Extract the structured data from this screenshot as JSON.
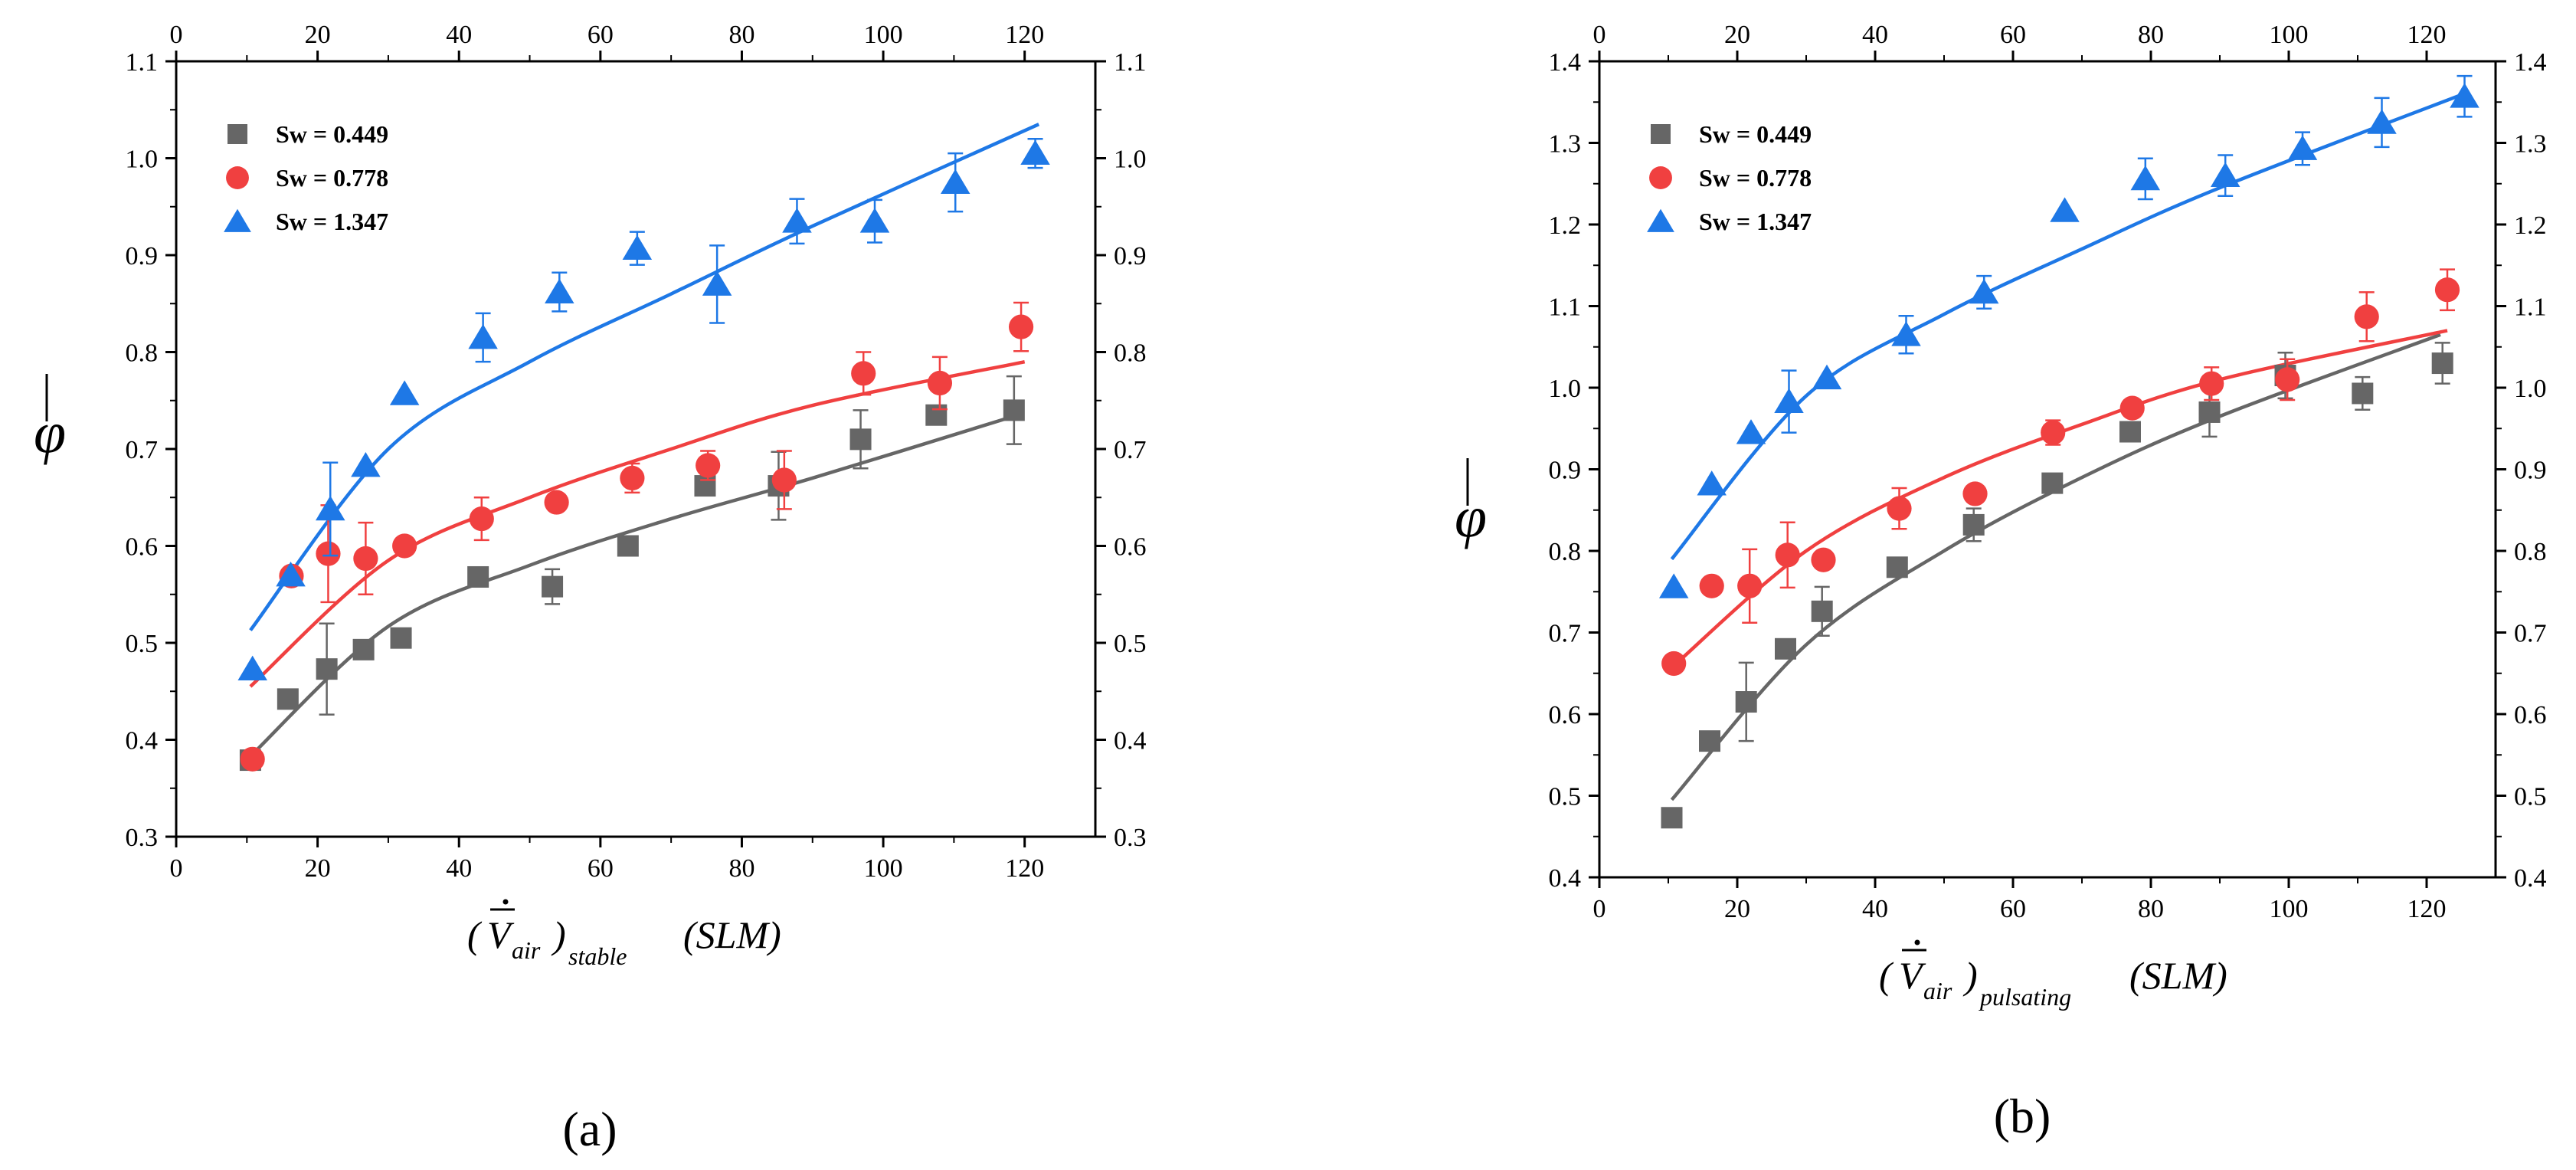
{
  "chart_data": [
    {
      "type": "scatter",
      "panel_label": "(a)",
      "xlabel": {
        "base": "V",
        "sub1": "air",
        "sub2": "stable",
        "unit": "(SLM)"
      },
      "ylabel": "φ",
      "xlim": [
        0,
        130
      ],
      "ylim": [
        0.3,
        1.1
      ],
      "xticks": [
        0,
        20,
        40,
        60,
        80,
        100,
        120
      ],
      "yticks": [
        0.3,
        0.4,
        0.5,
        0.6,
        0.7,
        0.8,
        0.9,
        1.0,
        1.1
      ],
      "top_xlim": [
        0,
        130
      ],
      "top_xticks": [
        0,
        20,
        40,
        60,
        80,
        100,
        120
      ],
      "grid": false,
      "legend_position": "top-left",
      "series": [
        {
          "name": "Sw = 0.449",
          "color": "#666666",
          "marker": "square",
          "x": [
            10.5,
            15.8,
            21.3,
            26.5,
            31.8,
            42.7,
            53.2,
            63.9,
            74.8,
            85.2,
            96.8,
            107.5,
            118.5
          ],
          "y": [
            0.379,
            0.442,
            0.473,
            0.493,
            0.505,
            0.568,
            0.558,
            0.6,
            0.662,
            0.662,
            0.71,
            0.735,
            0.74
          ],
          "err": [
            0.0,
            0.0,
            0.047,
            0.0,
            0.0,
            0.0,
            0.018,
            0.0,
            0.0,
            0.035,
            0.03,
            0.0,
            0.035
          ],
          "fit": [
            [
              10.5,
              0.383
            ],
            [
              30,
              0.517
            ],
            [
              50,
              0.58
            ],
            [
              70,
              0.628
            ],
            [
              90,
              0.67
            ],
            [
              119,
              0.735
            ]
          ]
        },
        {
          "name": "Sw = 0.778",
          "color": "#f04040",
          "marker": "circle",
          "x": [
            10.8,
            16.3,
            21.5,
            26.8,
            32.3,
            43.2,
            53.8,
            64.5,
            75.2,
            86.0,
            97.2,
            108.0,
            119.5
          ],
          "y": [
            0.38,
            0.569,
            0.592,
            0.587,
            0.6,
            0.628,
            0.645,
            0.67,
            0.683,
            0.668,
            0.778,
            0.768,
            0.826
          ],
          "err": [
            0.0,
            0.0,
            0.05,
            0.037,
            0.0,
            0.022,
            0.0,
            0.015,
            0.015,
            0.03,
            0.022,
            0.027,
            0.025
          ],
          "fit": [
            [
              10.5,
              0.455
            ],
            [
              30,
              0.585
            ],
            [
              50,
              0.65
            ],
            [
              70,
              0.7
            ],
            [
              90,
              0.745
            ],
            [
              120,
              0.79
            ]
          ]
        },
        {
          "name": "Sw = 1.347",
          "color": "#1e78e6",
          "marker": "triangle",
          "x": [
            10.8,
            16.2,
            21.8,
            26.8,
            32.3,
            43.4,
            54.2,
            65.2,
            76.5,
            87.8,
            98.8,
            110.2,
            121.5
          ],
          "y": [
            0.473,
            0.57,
            0.638,
            0.683,
            0.757,
            0.815,
            0.862,
            0.907,
            0.87,
            0.935,
            0.935,
            0.975,
            1.005
          ],
          "err": [
            0.0,
            0.0,
            0.048,
            0.0,
            0.0,
            0.025,
            0.02,
            0.017,
            0.04,
            0.023,
            0.022,
            0.03,
            0.015
          ],
          "fit": [
            [
              10.5,
              0.513
            ],
            [
              30,
              0.7
            ],
            [
              50,
              0.79
            ],
            [
              70,
              0.86
            ],
            [
              90,
              0.93
            ],
            [
              122,
              1.035
            ]
          ]
        }
      ]
    },
    {
      "type": "scatter",
      "panel_label": "(b)",
      "xlabel": {
        "base": "V",
        "sub1": "air",
        "sub2": "pulsating",
        "unit": "(SLM)"
      },
      "ylabel": "φ",
      "xlim": [
        0,
        130
      ],
      "ylim": [
        0.4,
        1.4
      ],
      "xticks": [
        0,
        20,
        40,
        60,
        80,
        100,
        120
      ],
      "yticks": [
        0.4,
        0.5,
        0.6,
        0.7,
        0.8,
        0.9,
        1.0,
        1.1,
        1.2,
        1.3,
        1.4
      ],
      "top_xlim": [
        0,
        130
      ],
      "top_xticks": [
        0,
        20,
        40,
        60,
        80,
        100,
        120
      ],
      "grid": false,
      "legend_position": "top-left",
      "series": [
        {
          "name": "Sw = 0.449",
          "color": "#666666",
          "marker": "square",
          "x": [
            10.5,
            16.0,
            21.3,
            27.0,
            32.3,
            43.2,
            54.3,
            65.7,
            77.0,
            88.5,
            99.5,
            110.7,
            122.3
          ],
          "y": [
            0.473,
            0.567,
            0.615,
            0.68,
            0.726,
            0.78,
            0.832,
            0.883,
            0.946,
            0.97,
            1.015,
            0.993,
            1.03
          ],
          "err": [
            0.0,
            0.0,
            0.048,
            0.0,
            0.03,
            0.0,
            0.02,
            0.0,
            0.0,
            0.03,
            0.028,
            0.02,
            0.025
          ],
          "fit": [
            [
              10.5,
              0.495
            ],
            [
              30,
              0.685
            ],
            [
              50,
              0.8
            ],
            [
              70,
              0.89
            ],
            [
              90,
              0.965
            ],
            [
              122,
              1.065
            ]
          ]
        },
        {
          "name": "Sw = 0.778",
          "color": "#f04040",
          "marker": "circle",
          "x": [
            10.8,
            16.3,
            21.8,
            27.3,
            32.5,
            43.5,
            54.5,
            65.8,
            77.3,
            88.8,
            99.8,
            111.3,
            123.0
          ],
          "y": [
            0.662,
            0.757,
            0.757,
            0.795,
            0.789,
            0.852,
            0.87,
            0.945,
            0.975,
            1.005,
            1.01,
            1.087,
            1.12
          ],
          "err": [
            0.0,
            0.0,
            0.045,
            0.04,
            0.0,
            0.025,
            0.0,
            0.015,
            0.0,
            0.02,
            0.025,
            0.03,
            0.025
          ],
          "fit": [
            [
              10.5,
              0.657
            ],
            [
              30,
              0.8
            ],
            [
              50,
              0.89
            ],
            [
              70,
              0.955
            ],
            [
              90,
              1.01
            ],
            [
              123,
              1.07
            ]
          ]
        },
        {
          "name": "Sw = 1.347",
          "color": "#1e78e6",
          "marker": "triangle",
          "x": [
            10.8,
            16.3,
            22.0,
            27.5,
            33.0,
            44.5,
            55.8,
            67.5,
            79.2,
            90.8,
            102.0,
            113.5,
            125.5
          ],
          "y": [
            0.756,
            0.882,
            0.945,
            0.983,
            1.012,
            1.065,
            1.117,
            1.217,
            1.256,
            1.26,
            1.293,
            1.325,
            1.357
          ],
          "err": [
            0.0,
            0.0,
            0.0,
            0.038,
            0.0,
            0.023,
            0.02,
            0.0,
            0.025,
            0.025,
            0.02,
            0.03,
            0.025
          ],
          "fit": [
            [
              10.5,
              0.79
            ],
            [
              30,
              0.99
            ],
            [
              50,
              1.09
            ],
            [
              70,
              1.17
            ],
            [
              90,
              1.245
            ],
            [
              126,
              1.362
            ]
          ]
        }
      ]
    }
  ]
}
